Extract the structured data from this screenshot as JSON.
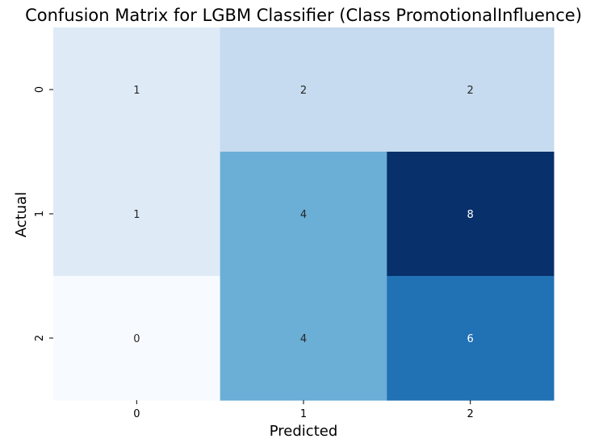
{
  "chart_data": {
    "type": "heatmap",
    "title": "Confusion Matrix for LGBM Classifier (Class PromotionalInfluence)",
    "xlabel": "Predicted",
    "ylabel": "Actual",
    "x_categories": [
      "0",
      "1",
      "2"
    ],
    "y_categories": [
      "0",
      "1",
      "2"
    ],
    "values": [
      [
        1,
        2,
        2
      ],
      [
        1,
        4,
        8
      ],
      [
        0,
        4,
        6
      ]
    ],
    "colormap": "Blues",
    "value_range": [
      0,
      8
    ],
    "colorbar": false,
    "grid": false
  }
}
